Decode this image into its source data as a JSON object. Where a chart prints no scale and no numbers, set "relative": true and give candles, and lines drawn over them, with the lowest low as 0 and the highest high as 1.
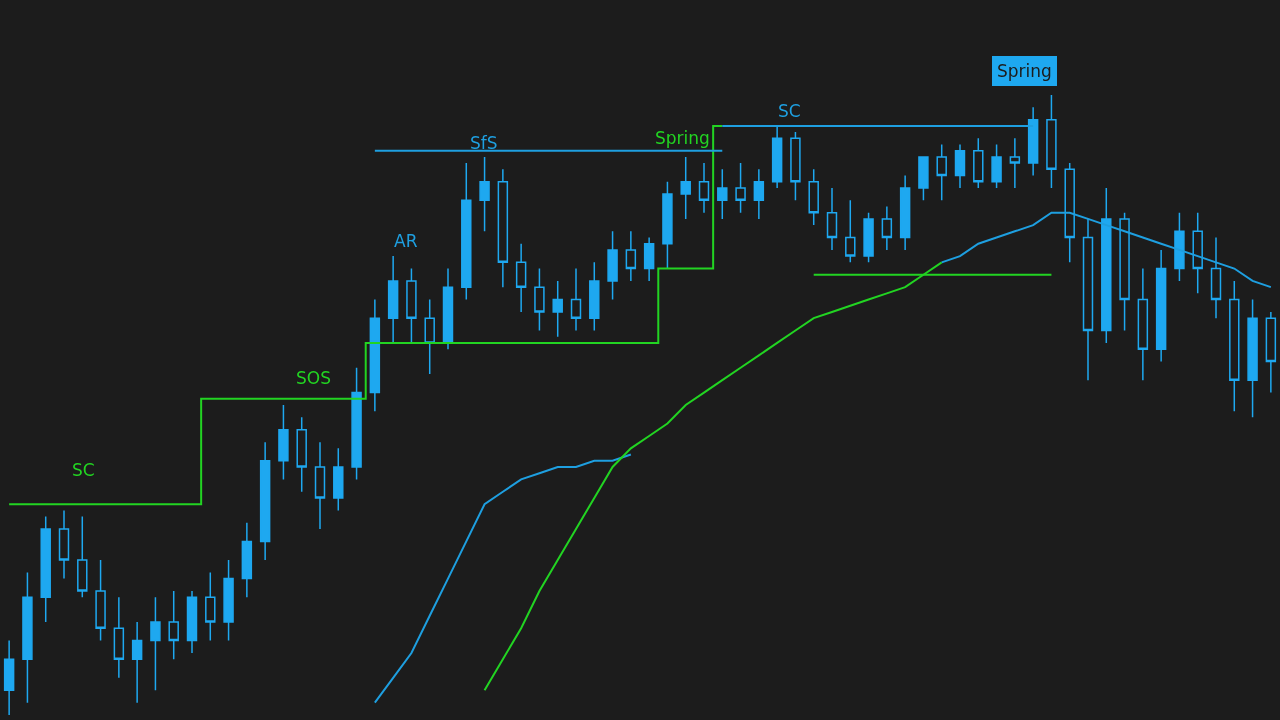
{
  "chart_data": {
    "type": "candlestick",
    "relative": true,
    "categories": [
      null,
      null,
      null,
      null,
      null,
      null,
      null,
      null,
      null,
      null,
      null,
      null,
      null,
      null,
      null,
      null,
      null,
      null,
      null,
      null,
      null,
      null,
      null,
      null,
      null,
      null,
      null,
      null,
      null,
      null,
      null,
      null,
      null,
      null,
      null,
      null,
      null,
      null,
      null,
      null,
      null,
      null,
      null,
      null,
      null,
      null,
      null,
      null,
      null,
      null,
      null,
      null,
      null,
      null,
      null,
      null,
      null,
      null,
      null,
      null,
      null,
      null,
      null,
      null,
      null,
      null,
      null,
      null,
      null,
      null
    ],
    "annotations": [
      "SC",
      "SOS",
      "AR",
      "SfS",
      "Spring",
      "SC",
      "Spring"
    ],
    "series": [
      {
        "type": "step",
        "color": "#22d422",
        "values": [
          0.34,
          0.34,
          0.34,
          0.34,
          0.34,
          0.34,
          0.34,
          0.34,
          0.34,
          0.34,
          0.34,
          0.51,
          0.51,
          0.51,
          0.51,
          0.51,
          0.51,
          0.51,
          0.51,
          0.51,
          0.6,
          0.6,
          0.6,
          0.6,
          0.6,
          0.6,
          0.6,
          0.6,
          0.6,
          0.6,
          0.6,
          0.6,
          0.6,
          0.6,
          0.6,
          0.6,
          0.72,
          0.72,
          0.72,
          0.95,
          null,
          null,
          null,
          null,
          null,
          null,
          null,
          null,
          null,
          null,
          null,
          null,
          null,
          null,
          null,
          null,
          null,
          null,
          null,
          null,
          null,
          null,
          null,
          null,
          null,
          null,
          null,
          null,
          null,
          null
        ]
      },
      {
        "type": "line",
        "color": "#1e9fe0",
        "values": [
          null,
          null,
          null,
          null,
          null,
          null,
          null,
          null,
          null,
          null,
          null,
          null,
          null,
          null,
          null,
          null,
          null,
          null,
          null,
          null,
          0.91,
          0.91,
          0.91,
          0.91,
          0.91,
          0.91,
          0.91,
          0.91,
          0.91,
          0.91,
          0.91,
          0.91,
          0.91,
          0.91,
          0.91,
          0.91,
          0.91,
          0.91,
          0.91,
          0.91,
          null,
          null,
          null,
          null,
          null,
          null,
          null,
          null,
          null,
          null,
          null,
          null,
          null,
          null,
          null,
          null,
          null,
          null,
          null,
          null,
          null,
          null,
          null,
          null,
          null,
          null,
          null,
          null,
          null,
          null
        ]
      },
      {
        "type": "line",
        "color": "#1e9fe0",
        "values": [
          null,
          null,
          null,
          null,
          null,
          null,
          null,
          null,
          null,
          null,
          null,
          null,
          null,
          null,
          null,
          null,
          null,
          null,
          null,
          null,
          null,
          null,
          null,
          null,
          null,
          null,
          null,
          null,
          null,
          null,
          null,
          null,
          null,
          null,
          null,
          null,
          null,
          null,
          null,
          0.95,
          0.95,
          0.95,
          0.95,
          0.95,
          0.95,
          0.95,
          0.95,
          0.95,
          0.95,
          0.95,
          0.95,
          0.95,
          0.95,
          0.95,
          0.95,
          0.95,
          0.95,
          null,
          null,
          null,
          null,
          null,
          null,
          null,
          null,
          null,
          null,
          null,
          null,
          null
        ]
      },
      {
        "type": "line",
        "color": "#22d422",
        "values": [
          null,
          null,
          null,
          null,
          null,
          null,
          null,
          null,
          null,
          null,
          null,
          null,
          null,
          null,
          null,
          null,
          null,
          null,
          null,
          null,
          null,
          null,
          null,
          null,
          null,
          null,
          null,
          null,
          null,
          null,
          null,
          null,
          null,
          null,
          null,
          null,
          null,
          null,
          null,
          null,
          null,
          null,
          null,
          null,
          0.71,
          0.71,
          0.71,
          0.71,
          0.71,
          0.71,
          0.71,
          0.71,
          0.71,
          0.71,
          0.71,
          0.71,
          0.71,
          0.71,
          null,
          null,
          null,
          null,
          null,
          null,
          null,
          null,
          null,
          null,
          null,
          null
        ]
      },
      {
        "type": "line",
        "color": "#1e9fe0",
        "values": [
          null,
          null,
          null,
          null,
          null,
          null,
          null,
          null,
          null,
          null,
          null,
          null,
          null,
          null,
          null,
          null,
          null,
          null,
          null,
          null,
          0.02,
          0.06,
          0.1,
          0.16,
          0.22,
          0.28,
          0.34,
          0.36,
          0.38,
          0.39,
          0.4,
          0.4,
          0.41,
          0.41,
          0.42,
          null,
          null,
          null,
          null,
          null,
          null,
          null,
          null,
          null,
          null,
          null,
          null,
          null,
          null,
          null,
          null,
          null,
          null,
          null,
          null,
          null,
          null,
          null,
          null,
          null,
          null,
          null,
          null,
          null,
          null,
          null,
          null,
          null,
          null,
          null
        ]
      },
      {
        "type": "line",
        "color": "#22d422",
        "values": [
          null,
          null,
          null,
          null,
          null,
          null,
          null,
          null,
          null,
          null,
          null,
          null,
          null,
          null,
          null,
          null,
          null,
          null,
          null,
          null,
          null,
          null,
          null,
          null,
          null,
          null,
          0.04,
          0.09,
          0.14,
          0.2,
          0.25,
          0.3,
          0.35,
          0.4,
          0.43,
          0.45,
          0.47,
          0.5,
          0.52,
          0.54,
          0.56,
          0.58,
          0.6,
          0.62,
          0.64,
          0.65,
          0.66,
          0.67,
          0.68,
          0.69,
          0.71,
          0.73,
          null,
          null,
          null,
          null,
          null,
          null,
          null,
          null,
          null,
          null,
          null,
          null,
          null,
          null,
          null,
          null,
          null,
          null
        ]
      },
      {
        "type": "line",
        "color": "#1e9fe0",
        "values": [
          null,
          null,
          null,
          null,
          null,
          null,
          null,
          null,
          null,
          null,
          null,
          null,
          null,
          null,
          null,
          null,
          null,
          null,
          null,
          null,
          null,
          null,
          null,
          null,
          null,
          null,
          null,
          null,
          null,
          null,
          null,
          null,
          null,
          null,
          null,
          null,
          null,
          null,
          null,
          null,
          null,
          null,
          null,
          null,
          null,
          null,
          null,
          null,
          null,
          null,
          null,
          0.73,
          0.74,
          0.76,
          0.77,
          0.78,
          0.79,
          0.81,
          0.81,
          0.8,
          0.79,
          0.78,
          0.77,
          0.76,
          0.75,
          0.74,
          0.73,
          0.72,
          0.7,
          0.69
        ]
      },
      {
        "color": "#1ea8f0",
        "ohlc": [
          [
            0.04,
            0.12,
            0.0,
            0.09
          ],
          [
            0.09,
            0.23,
            0.02,
            0.19
          ],
          [
            0.19,
            0.32,
            0.15,
            0.3
          ],
          [
            0.3,
            0.33,
            0.22,
            0.25
          ],
          [
            0.25,
            0.32,
            0.19,
            0.2
          ],
          [
            0.2,
            0.25,
            0.12,
            0.14
          ],
          [
            0.14,
            0.19,
            0.06,
            0.09
          ],
          [
            0.09,
            0.15,
            0.02,
            0.12
          ],
          [
            0.12,
            0.19,
            0.04,
            0.15
          ],
          [
            0.15,
            0.2,
            0.09,
            0.12
          ],
          [
            0.12,
            0.2,
            0.1,
            0.19
          ],
          [
            0.19,
            0.23,
            0.12,
            0.15
          ],
          [
            0.15,
            0.25,
            0.12,
            0.22
          ],
          [
            0.22,
            0.31,
            0.19,
            0.28
          ],
          [
            0.28,
            0.44,
            0.25,
            0.41
          ],
          [
            0.41,
            0.5,
            0.38,
            0.46
          ],
          [
            0.46,
            0.48,
            0.36,
            0.4
          ],
          [
            0.4,
            0.44,
            0.3,
            0.35
          ],
          [
            0.35,
            0.43,
            0.33,
            0.4
          ],
          [
            0.4,
            0.56,
            0.38,
            0.52
          ],
          [
            0.52,
            0.67,
            0.49,
            0.64
          ],
          [
            0.64,
            0.74,
            0.6,
            0.7
          ],
          [
            0.7,
            0.72,
            0.6,
            0.64
          ],
          [
            0.64,
            0.67,
            0.55,
            0.6
          ],
          [
            0.6,
            0.72,
            0.59,
            0.69
          ],
          [
            0.69,
            0.89,
            0.67,
            0.83
          ],
          [
            0.83,
            0.9,
            0.78,
            0.86
          ],
          [
            0.86,
            0.88,
            0.69,
            0.73
          ],
          [
            0.73,
            0.76,
            0.65,
            0.69
          ],
          [
            0.69,
            0.72,
            0.62,
            0.65
          ],
          [
            0.65,
            0.7,
            0.61,
            0.67
          ],
          [
            0.67,
            0.72,
            0.62,
            0.64
          ],
          [
            0.64,
            0.73,
            0.62,
            0.7
          ],
          [
            0.7,
            0.78,
            0.67,
            0.75
          ],
          [
            0.75,
            0.78,
            0.7,
            0.72
          ],
          [
            0.72,
            0.77,
            0.7,
            0.76
          ],
          [
            0.76,
            0.86,
            0.72,
            0.84
          ],
          [
            0.84,
            0.9,
            0.8,
            0.86
          ],
          [
            0.86,
            0.89,
            0.81,
            0.83
          ],
          [
            0.83,
            0.88,
            0.8,
            0.85
          ],
          [
            0.85,
            0.89,
            0.81,
            0.83
          ],
          [
            0.83,
            0.88,
            0.8,
            0.86
          ],
          [
            0.86,
            0.95,
            0.85,
            0.93
          ],
          [
            0.93,
            0.94,
            0.83,
            0.86
          ],
          [
            0.86,
            0.88,
            0.79,
            0.81
          ],
          [
            0.81,
            0.85,
            0.75,
            0.77
          ],
          [
            0.77,
            0.83,
            0.73,
            0.74
          ],
          [
            0.74,
            0.81,
            0.73,
            0.8
          ],
          [
            0.8,
            0.82,
            0.75,
            0.77
          ],
          [
            0.77,
            0.87,
            0.75,
            0.85
          ],
          [
            0.85,
            0.9,
            0.83,
            0.9
          ],
          [
            0.9,
            0.92,
            0.83,
            0.87
          ],
          [
            0.87,
            0.92,
            0.85,
            0.91
          ],
          [
            0.91,
            0.93,
            0.85,
            0.86
          ],
          [
            0.86,
            0.92,
            0.85,
            0.9
          ],
          [
            0.9,
            0.93,
            0.85,
            0.89
          ],
          [
            0.89,
            0.98,
            0.87,
            0.96
          ],
          [
            0.96,
            1.0,
            0.85,
            0.88
          ],
          [
            0.88,
            0.89,
            0.73,
            0.77
          ],
          [
            0.77,
            0.8,
            0.54,
            0.62
          ],
          [
            0.62,
            0.85,
            0.6,
            0.8
          ],
          [
            0.8,
            0.81,
            0.62,
            0.67
          ],
          [
            0.67,
            0.72,
            0.54,
            0.59
          ],
          [
            0.59,
            0.75,
            0.57,
            0.72
          ],
          [
            0.72,
            0.81,
            0.7,
            0.78
          ],
          [
            0.78,
            0.81,
            0.68,
            0.72
          ],
          [
            0.72,
            0.77,
            0.64,
            0.67
          ],
          [
            0.67,
            0.7,
            0.49,
            0.54
          ],
          [
            0.54,
            0.67,
            0.48,
            0.64
          ],
          [
            0.64,
            0.65,
            0.52,
            0.57
          ]
        ]
      }
    ]
  }
}
